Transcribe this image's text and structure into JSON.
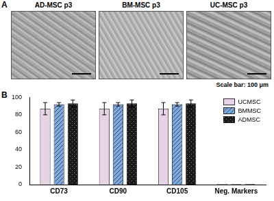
{
  "panels": [
    {
      "letter": "A",
      "images": [
        "AD-MSC p3",
        "BM-MSC p3",
        "UC-MSC p3"
      ],
      "scale_bar_label": "Scale bar: 100 μm"
    },
    {
      "letter": "B"
    }
  ],
  "chart_data": {
    "type": "bar",
    "categories": [
      "CD73",
      "CD90",
      "CD105",
      "Neg. Markers"
    ],
    "series": [
      {
        "name": "UCMSC",
        "color": "#e6d3e3",
        "values": [
          87,
          87,
          87,
          0.8
        ],
        "errors": [
          7,
          7,
          7,
          0
        ]
      },
      {
        "name": "BMMSC",
        "color": "#7fa8d8",
        "values": [
          92,
          92,
          92,
          0.5
        ],
        "errors": [
          2,
          2,
          2,
          0
        ]
      },
      {
        "name": "ADMSC",
        "color": "#1a1a1a",
        "values": [
          93,
          93,
          93,
          0.5
        ],
        "errors": [
          4,
          4,
          4,
          0
        ]
      }
    ],
    "ylim": [
      0,
      100
    ],
    "yticks": [
      0,
      20,
      40,
      60,
      80,
      100
    ],
    "grid": false,
    "legend": "upper right"
  }
}
